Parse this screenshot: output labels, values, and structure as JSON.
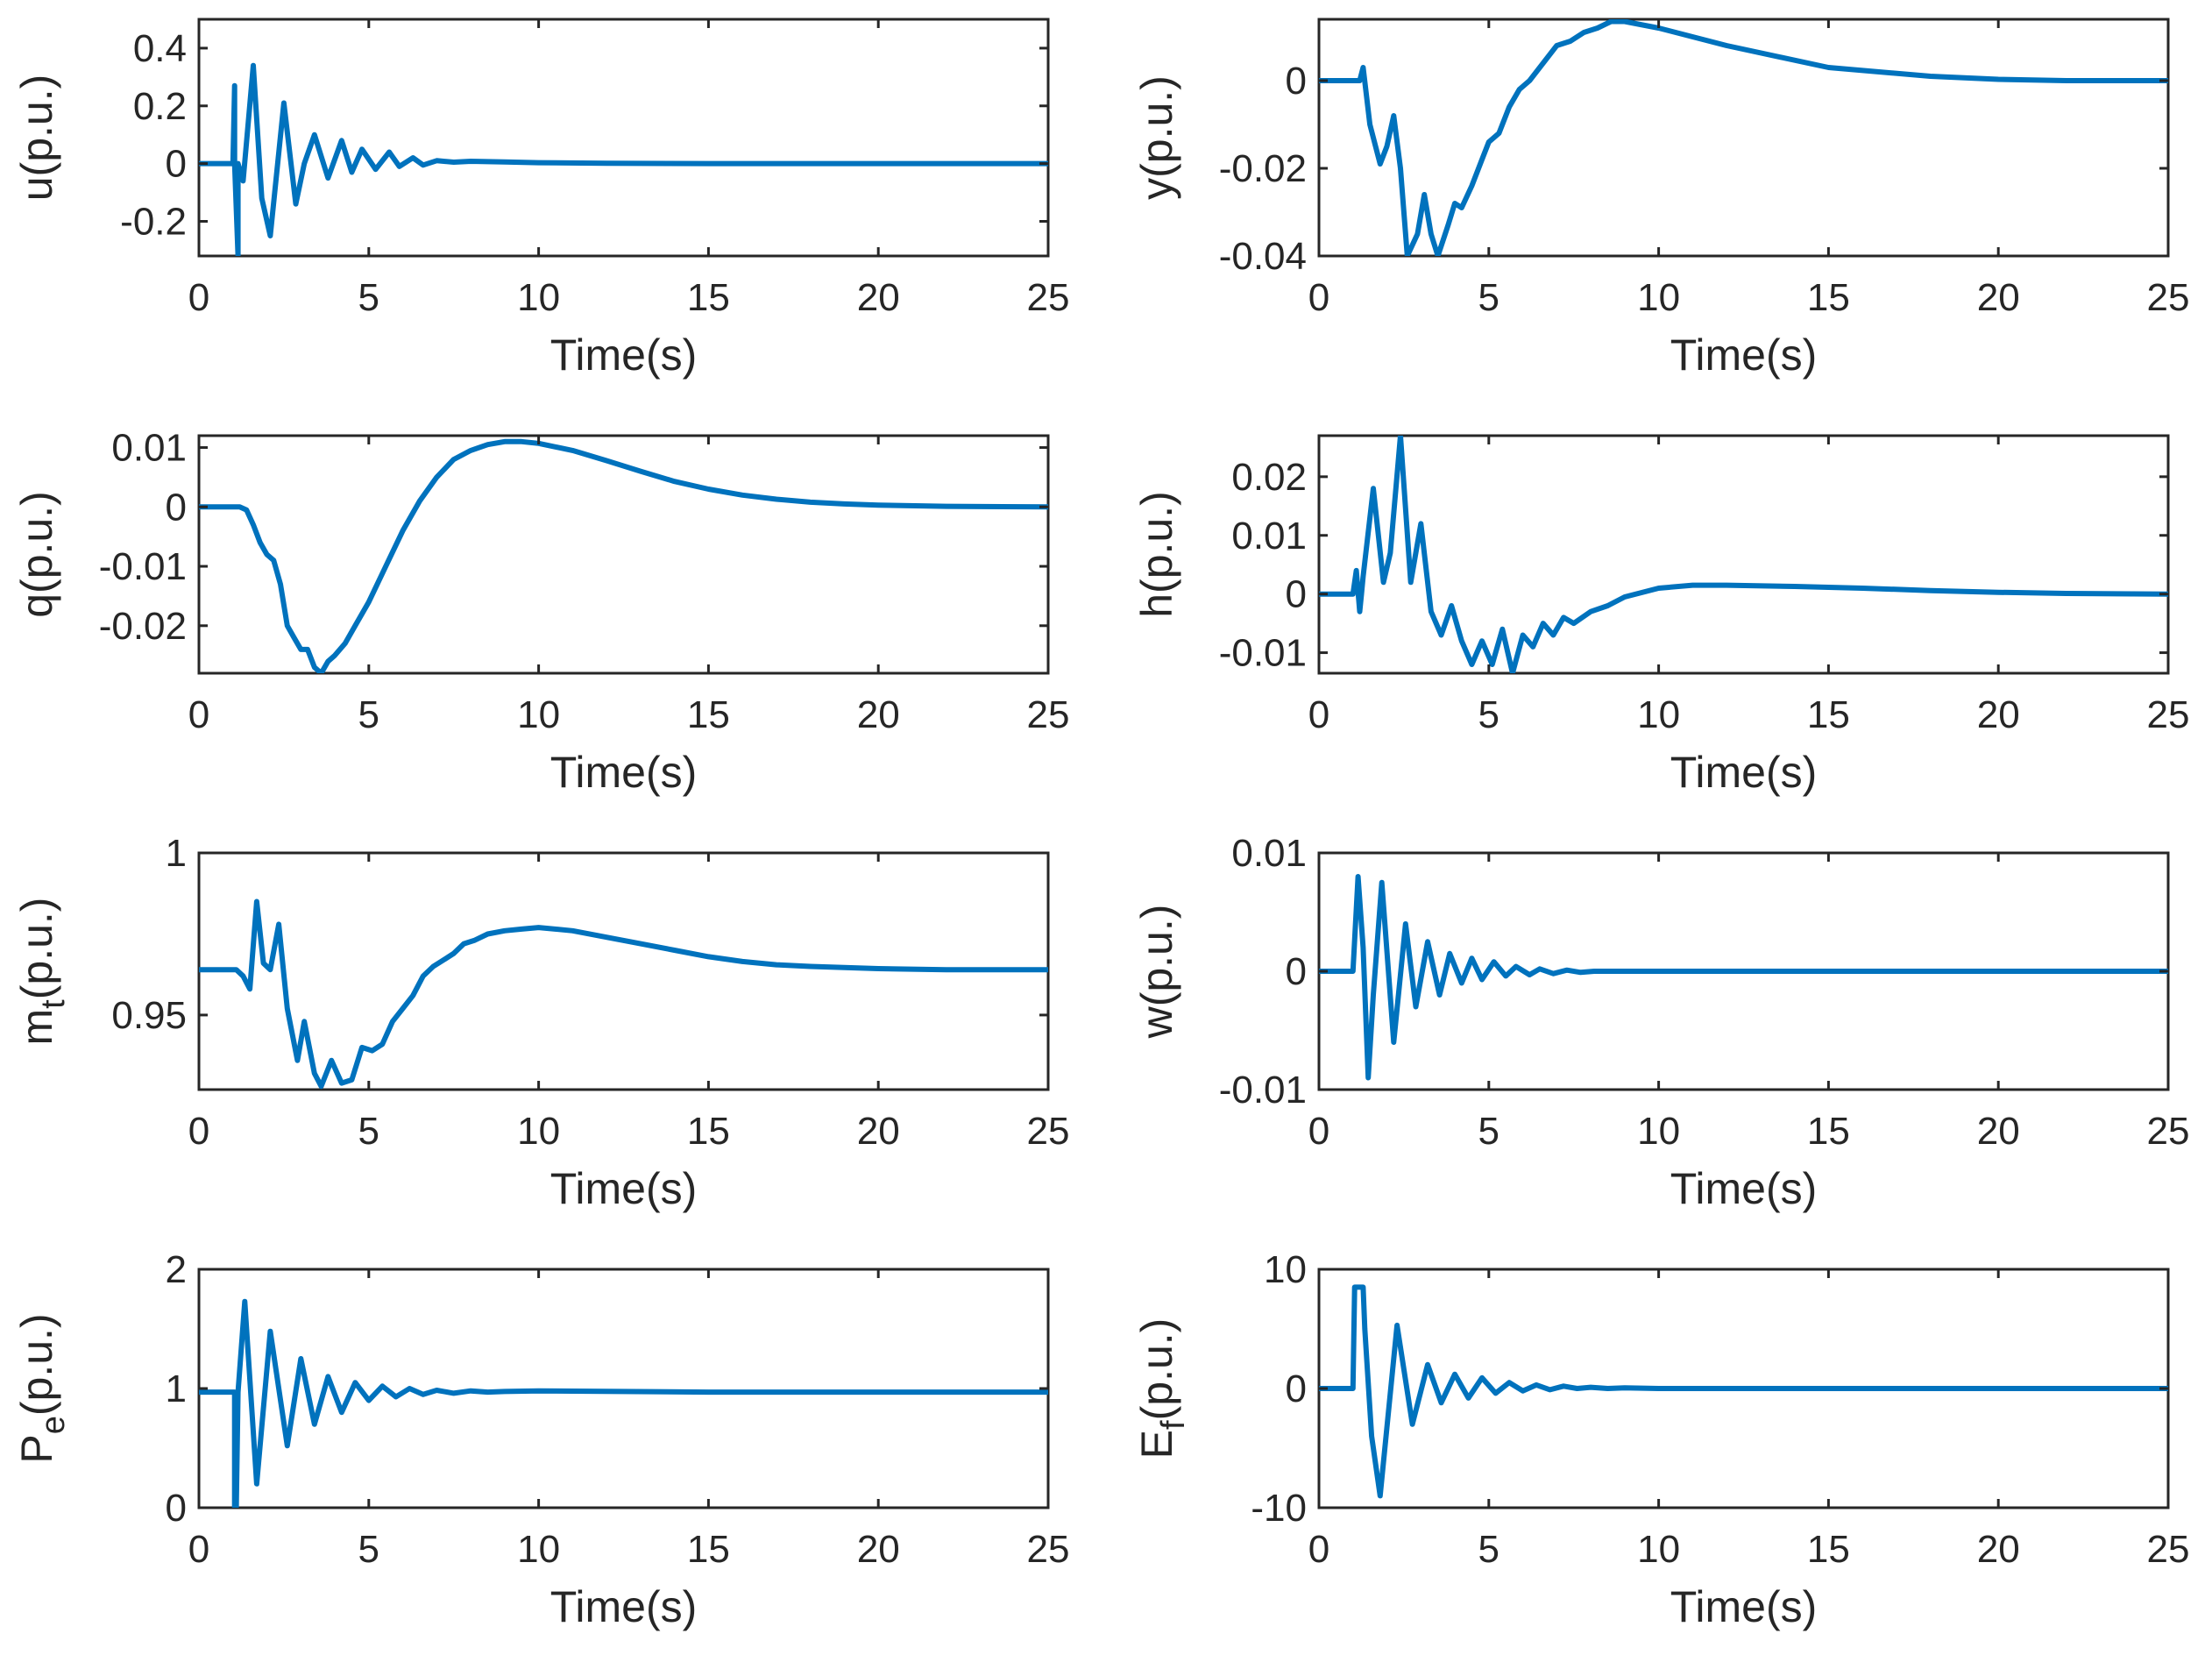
{
  "colors": {
    "series": "#0072BD",
    "axis": "#262626",
    "background": "#ffffff"
  },
  "chart_data": [
    {
      "type": "line",
      "id": "u",
      "ylabel": "u(p.u.)",
      "xlabel": "Time(s)",
      "xlim": [
        0,
        25
      ],
      "ylim": [
        -0.32,
        0.5
      ],
      "xticks": [
        0,
        5,
        10,
        15,
        20,
        25
      ],
      "yticks": [
        -0.2,
        0,
        0.2,
        0.4
      ],
      "ytick_labels": [
        "-0.2",
        "0",
        "0.2",
        "0.4"
      ],
      "x": [
        0,
        1.0,
        1.05,
        1.05,
        1.15,
        1.15,
        1.3,
        1.6,
        1.85,
        2.1,
        2.5,
        2.85,
        3.1,
        3.4,
        3.8,
        4.2,
        4.5,
        4.8,
        5.2,
        5.6,
        5.9,
        6.3,
        6.6,
        7.0,
        7.5,
        8.0,
        9.0,
        10.0,
        12.0,
        15.0,
        20.0,
        25.0
      ],
      "y": [
        0,
        0,
        0.27,
        0,
        -0.32,
        0,
        -0.06,
        0.34,
        -0.12,
        -0.25,
        0.21,
        -0.14,
        0.0,
        0.1,
        -0.05,
        0.08,
        -0.03,
        0.05,
        -0.02,
        0.04,
        -0.01,
        0.02,
        -0.005,
        0.01,
        0.005,
        0.008,
        0.006,
        0.003,
        0.001,
        0,
        0,
        0
      ]
    },
    {
      "type": "line",
      "id": "y",
      "ylabel": "y(p.u.)",
      "xlabel": "Time(s)",
      "xlim": [
        0,
        25
      ],
      "ylim": [
        -0.04,
        0.014
      ],
      "xticks": [
        0,
        5,
        10,
        15,
        20,
        25
      ],
      "yticks": [
        -0.04,
        -0.02,
        0
      ],
      "ytick_labels": [
        "-0.04",
        "-0.02",
        "0"
      ],
      "x": [
        0,
        1.2,
        1.3,
        1.5,
        1.8,
        2.0,
        2.2,
        2.4,
        2.6,
        2.9,
        3.1,
        3.3,
        3.5,
        3.8,
        4.0,
        4.2,
        4.5,
        4.8,
        5.0,
        5.3,
        5.6,
        5.9,
        6.2,
        6.6,
        7.0,
        7.4,
        7.8,
        8.2,
        8.6,
        9.0,
        10.0,
        12.0,
        15.0,
        18.0,
        20.0,
        22.0,
        25.0
      ],
      "y": [
        0,
        0,
        0.003,
        -0.01,
        -0.019,
        -0.015,
        -0.008,
        -0.02,
        -0.04,
        -0.035,
        -0.026,
        -0.035,
        -0.04,
        -0.033,
        -0.028,
        -0.029,
        -0.024,
        -0.018,
        -0.014,
        -0.012,
        -0.006,
        -0.002,
        0.0,
        0.004,
        0.008,
        0.009,
        0.011,
        0.012,
        0.0135,
        0.0135,
        0.012,
        0.008,
        0.003,
        0.001,
        0.0003,
        0,
        0
      ]
    },
    {
      "type": "line",
      "id": "q",
      "ylabel": "q(p.u.)",
      "xlabel": "Time(s)",
      "xlim": [
        0,
        25
      ],
      "ylim": [
        -0.028,
        0.012
      ],
      "xticks": [
        0,
        5,
        10,
        15,
        20,
        25
      ],
      "yticks": [
        -0.02,
        -0.01,
        0,
        0.01
      ],
      "ytick_labels": [
        "-0.02",
        "-0.01",
        "0",
        "0.01"
      ],
      "x": [
        0,
        1.2,
        1.4,
        1.6,
        1.8,
        2.0,
        2.2,
        2.4,
        2.6,
        2.8,
        3.0,
        3.2,
        3.4,
        3.6,
        3.8,
        4.0,
        4.3,
        4.6,
        5.0,
        5.5,
        6.0,
        6.5,
        7.0,
        7.5,
        8.0,
        8.5,
        9.0,
        9.5,
        10.0,
        11.0,
        12.0,
        13.0,
        14.0,
        15.0,
        16.0,
        17.0,
        18.0,
        19.0,
        20.0,
        22.0,
        25.0
      ],
      "y": [
        0,
        0,
        -0.0005,
        -0.003,
        -0.006,
        -0.008,
        -0.009,
        -0.013,
        -0.02,
        -0.022,
        -0.024,
        -0.024,
        -0.027,
        -0.028,
        -0.026,
        -0.025,
        -0.023,
        -0.02,
        -0.016,
        -0.01,
        -0.004,
        0.001,
        0.005,
        0.008,
        0.0095,
        0.0105,
        0.011,
        0.011,
        0.0107,
        0.0095,
        0.0078,
        0.006,
        0.0043,
        0.003,
        0.002,
        0.0013,
        0.0008,
        0.0005,
        0.0003,
        0.0001,
        0
      ]
    },
    {
      "type": "line",
      "id": "h",
      "ylabel": "h(p.u.)",
      "xlabel": "Time(s)",
      "xlim": [
        0,
        25
      ],
      "ylim": [
        -0.0135,
        0.027
      ],
      "xticks": [
        0,
        5,
        10,
        15,
        20,
        25
      ],
      "yticks": [
        -0.01,
        0,
        0.01,
        0.02
      ],
      "ytick_labels": [
        "-0.01",
        "0",
        "0.01",
        "0.02"
      ],
      "x": [
        0,
        1.0,
        1.1,
        1.2,
        1.25,
        1.3,
        1.6,
        1.9,
        2.1,
        2.4,
        2.7,
        3.0,
        3.3,
        3.6,
        3.9,
        4.2,
        4.5,
        4.8,
        5.1,
        5.4,
        5.7,
        6.0,
        6.3,
        6.6,
        6.9,
        7.2,
        7.5,
        8.0,
        8.5,
        9.0,
        10.0,
        11.0,
        12.0,
        14.0,
        16.0,
        18.0,
        20.0,
        22.0,
        25.0
      ],
      "y": [
        0,
        0,
        0.004,
        -0.003,
        0.0,
        0.003,
        0.018,
        0.002,
        0.007,
        0.027,
        0.002,
        0.012,
        -0.003,
        -0.007,
        -0.002,
        -0.008,
        -0.012,
        -0.008,
        -0.012,
        -0.006,
        -0.0135,
        -0.007,
        -0.009,
        -0.005,
        -0.007,
        -0.004,
        -0.005,
        -0.003,
        -0.002,
        -0.0005,
        0.001,
        0.0015,
        0.0015,
        0.0013,
        0.001,
        0.0006,
        0.0003,
        0.0001,
        0
      ]
    },
    {
      "type": "line",
      "id": "mt",
      "ylabel": "m",
      "ylabel_sub": "t",
      "ylabel_suffix": "(p.u.)",
      "xlabel": "Time(s)",
      "xlim": [
        0,
        25
      ],
      "ylim": [
        0.927,
        1.0
      ],
      "xticks": [
        0,
        5,
        10,
        15,
        20,
        25
      ],
      "yticks": [
        0.95,
        1.0
      ],
      "ytick_labels": [
        "0.95",
        "1"
      ],
      "x": [
        0,
        1.1,
        1.3,
        1.5,
        1.7,
        1.9,
        2.1,
        2.35,
        2.6,
        2.9,
        3.1,
        3.4,
        3.6,
        3.9,
        4.2,
        4.5,
        4.8,
        5.1,
        5.4,
        5.7,
        6.0,
        6.3,
        6.6,
        6.9,
        7.2,
        7.5,
        7.8,
        8.1,
        8.5,
        9.0,
        9.5,
        10.0,
        11.0,
        12.0,
        13.0,
        14.0,
        15.0,
        16.0,
        17.0,
        18.0,
        20.0,
        22.0,
        25.0
      ],
      "y": [
        0.964,
        0.964,
        0.962,
        0.958,
        0.985,
        0.966,
        0.964,
        0.978,
        0.952,
        0.936,
        0.948,
        0.932,
        0.928,
        0.936,
        0.929,
        0.93,
        0.94,
        0.939,
        0.941,
        0.948,
        0.952,
        0.956,
        0.962,
        0.965,
        0.967,
        0.969,
        0.972,
        0.973,
        0.975,
        0.976,
        0.9765,
        0.977,
        0.976,
        0.974,
        0.972,
        0.97,
        0.968,
        0.9665,
        0.9655,
        0.965,
        0.9643,
        0.964,
        0.964
      ]
    },
    {
      "type": "line",
      "id": "w",
      "ylabel": "w(p.u.)",
      "xlabel": "Time(s)",
      "xlim": [
        0,
        25
      ],
      "ylim": [
        -0.01,
        0.01
      ],
      "xticks": [
        0,
        5,
        10,
        15,
        20,
        25
      ],
      "yticks": [
        -0.01,
        0,
        0.01
      ],
      "ytick_labels": [
        "-0.01",
        "0",
        "0.01"
      ],
      "x": [
        0,
        1.0,
        1.15,
        1.3,
        1.45,
        1.6,
        1.85,
        2.2,
        2.55,
        2.85,
        3.2,
        3.55,
        3.85,
        4.2,
        4.5,
        4.8,
        5.15,
        5.5,
        5.8,
        6.2,
        6.5,
        6.9,
        7.3,
        7.7,
        8.1,
        8.5,
        9.0,
        10.0,
        12.0,
        15.0,
        25.0
      ],
      "y": [
        0,
        0,
        0.008,
        0.002,
        -0.009,
        -0.002,
        0.0075,
        -0.006,
        0.004,
        -0.003,
        0.0025,
        -0.002,
        0.0015,
        -0.001,
        0.0011,
        -0.0007,
        0.0008,
        -0.0004,
        0.0004,
        -0.0003,
        0.0002,
        -0.0002,
        0.0001,
        -0.0001,
        0,
        0,
        0,
        0,
        0,
        0,
        0
      ]
    },
    {
      "type": "line",
      "id": "Pe",
      "ylabel": "P",
      "ylabel_sub": "e",
      "ylabel_suffix": "(p.u.)",
      "xlabel": "Time(s)",
      "xlim": [
        0,
        25
      ],
      "ylim": [
        0,
        2
      ],
      "xticks": [
        0,
        5,
        10,
        15,
        20,
        25
      ],
      "yticks": [
        0,
        1,
        2
      ],
      "ytick_labels": [
        "0",
        "1",
        "2"
      ],
      "x": [
        0,
        1.0,
        1.05,
        1.05,
        1.1,
        1.15,
        1.35,
        1.7,
        2.1,
        2.6,
        3.0,
        3.4,
        3.8,
        4.2,
        4.6,
        5.0,
        5.4,
        5.8,
        6.2,
        6.6,
        7.0,
        7.5,
        8.0,
        8.5,
        9.0,
        10.0,
        15.0,
        20.0,
        25.0
      ],
      "y": [
        0.97,
        0.97,
        0.97,
        0.0,
        0.0,
        0.97,
        1.73,
        0.2,
        1.48,
        0.52,
        1.25,
        0.7,
        1.1,
        0.8,
        1.05,
        0.9,
        1.02,
        0.93,
        1.0,
        0.95,
        0.985,
        0.96,
        0.98,
        0.97,
        0.975,
        0.98,
        0.97,
        0.97,
        0.97
      ]
    },
    {
      "type": "line",
      "id": "Ef",
      "ylabel": "E",
      "ylabel_sub": "f",
      "ylabel_suffix": "(p.u.)",
      "xlabel": "Time(s)",
      "xlim": [
        0,
        25
      ],
      "ylim": [
        -10,
        10
      ],
      "xticks": [
        0,
        5,
        10,
        15,
        20,
        25
      ],
      "yticks": [
        -10,
        0,
        10
      ],
      "ytick_labels": [
        "-10",
        "0",
        "10"
      ],
      "x": [
        0,
        1.0,
        1.05,
        1.3,
        1.35,
        1.55,
        1.8,
        2.3,
        2.75,
        3.2,
        3.6,
        4.0,
        4.4,
        4.8,
        5.2,
        5.6,
        6.0,
        6.4,
        6.8,
        7.2,
        7.6,
        8.0,
        8.5,
        9.0,
        10.0,
        15.0,
        25.0
      ],
      "y": [
        0,
        0,
        8.5,
        8.5,
        5.0,
        -4.0,
        -9.0,
        5.3,
        -3.0,
        2.0,
        -1.2,
        1.2,
        -0.8,
        0.9,
        -0.4,
        0.5,
        -0.2,
        0.3,
        -0.1,
        0.2,
        0.0,
        0.1,
        0.0,
        0.05,
        0,
        0,
        0
      ]
    }
  ]
}
